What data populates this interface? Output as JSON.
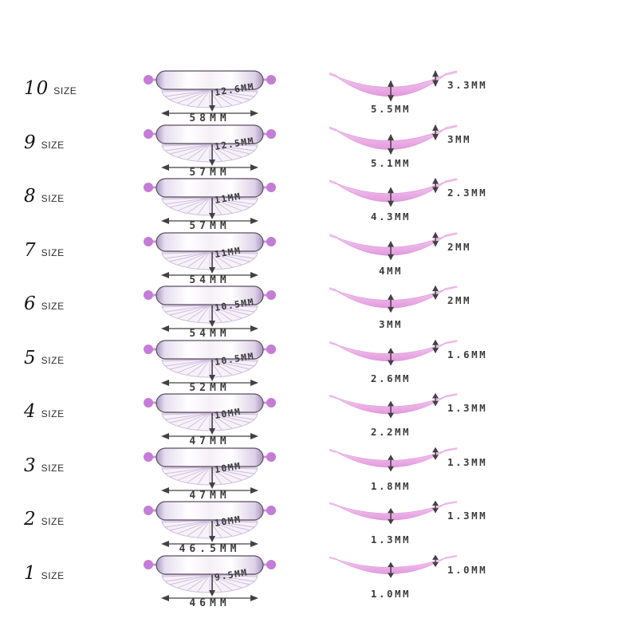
{
  "rows": [
    {
      "size_number": "10",
      "size_word": "SIZE",
      "top_height": "12.6MM",
      "top_width": "58MM",
      "side_depth": "5.5MM",
      "side_tip": "3.3MM"
    },
    {
      "size_number": "9",
      "size_word": "SIZE",
      "top_height": "12.5MM",
      "top_width": "57MM",
      "side_depth": "5.1MM",
      "side_tip": "3MM"
    },
    {
      "size_number": "8",
      "size_word": "SIZE",
      "top_height": "11MM",
      "top_width": "57MM",
      "side_depth": "4.3MM",
      "side_tip": "2.3MM"
    },
    {
      "size_number": "7",
      "size_word": "SIZE",
      "top_height": "11MM",
      "top_width": "54MM",
      "side_depth": "4MM",
      "side_tip": "2MM"
    },
    {
      "size_number": "6",
      "size_word": "SIZE",
      "top_height": "10.5MM",
      "top_width": "54MM",
      "side_depth": "3MM",
      "side_tip": "2MM"
    },
    {
      "size_number": "5",
      "size_word": "SIZE",
      "top_height": "10.5MM",
      "top_width": "52MM",
      "side_depth": "2.6MM",
      "side_tip": "1.6MM"
    },
    {
      "size_number": "4",
      "size_word": "SIZE",
      "top_height": "10MM",
      "top_width": "47MM",
      "side_depth": "2.2MM",
      "side_tip": "1.3MM"
    },
    {
      "size_number": "3",
      "size_word": "SIZE",
      "top_height": "10MM",
      "top_width": "47MM",
      "side_depth": "1.8MM",
      "side_tip": "1.3MM"
    },
    {
      "size_number": "2",
      "size_word": "SIZE",
      "top_height": "10MM",
      "top_width": "46.5MM",
      "side_depth": "1.3MM",
      "side_tip": "1.3MM"
    },
    {
      "size_number": "1",
      "size_word": "SIZE",
      "top_height": "9.5MM",
      "top_width": "46MM",
      "side_depth": "1.0MM",
      "side_tip": "1.0MM"
    }
  ],
  "colors": {
    "measure_text": "#3c3c3c",
    "pad_pink_light": "#f6cdf0",
    "pad_pink": "#e29ade",
    "dot_purple": "#c47cd6",
    "bar_outline": "#5b4d63",
    "lash_stroke": "#c5b4d4",
    "arrow_dark": "#454045"
  }
}
